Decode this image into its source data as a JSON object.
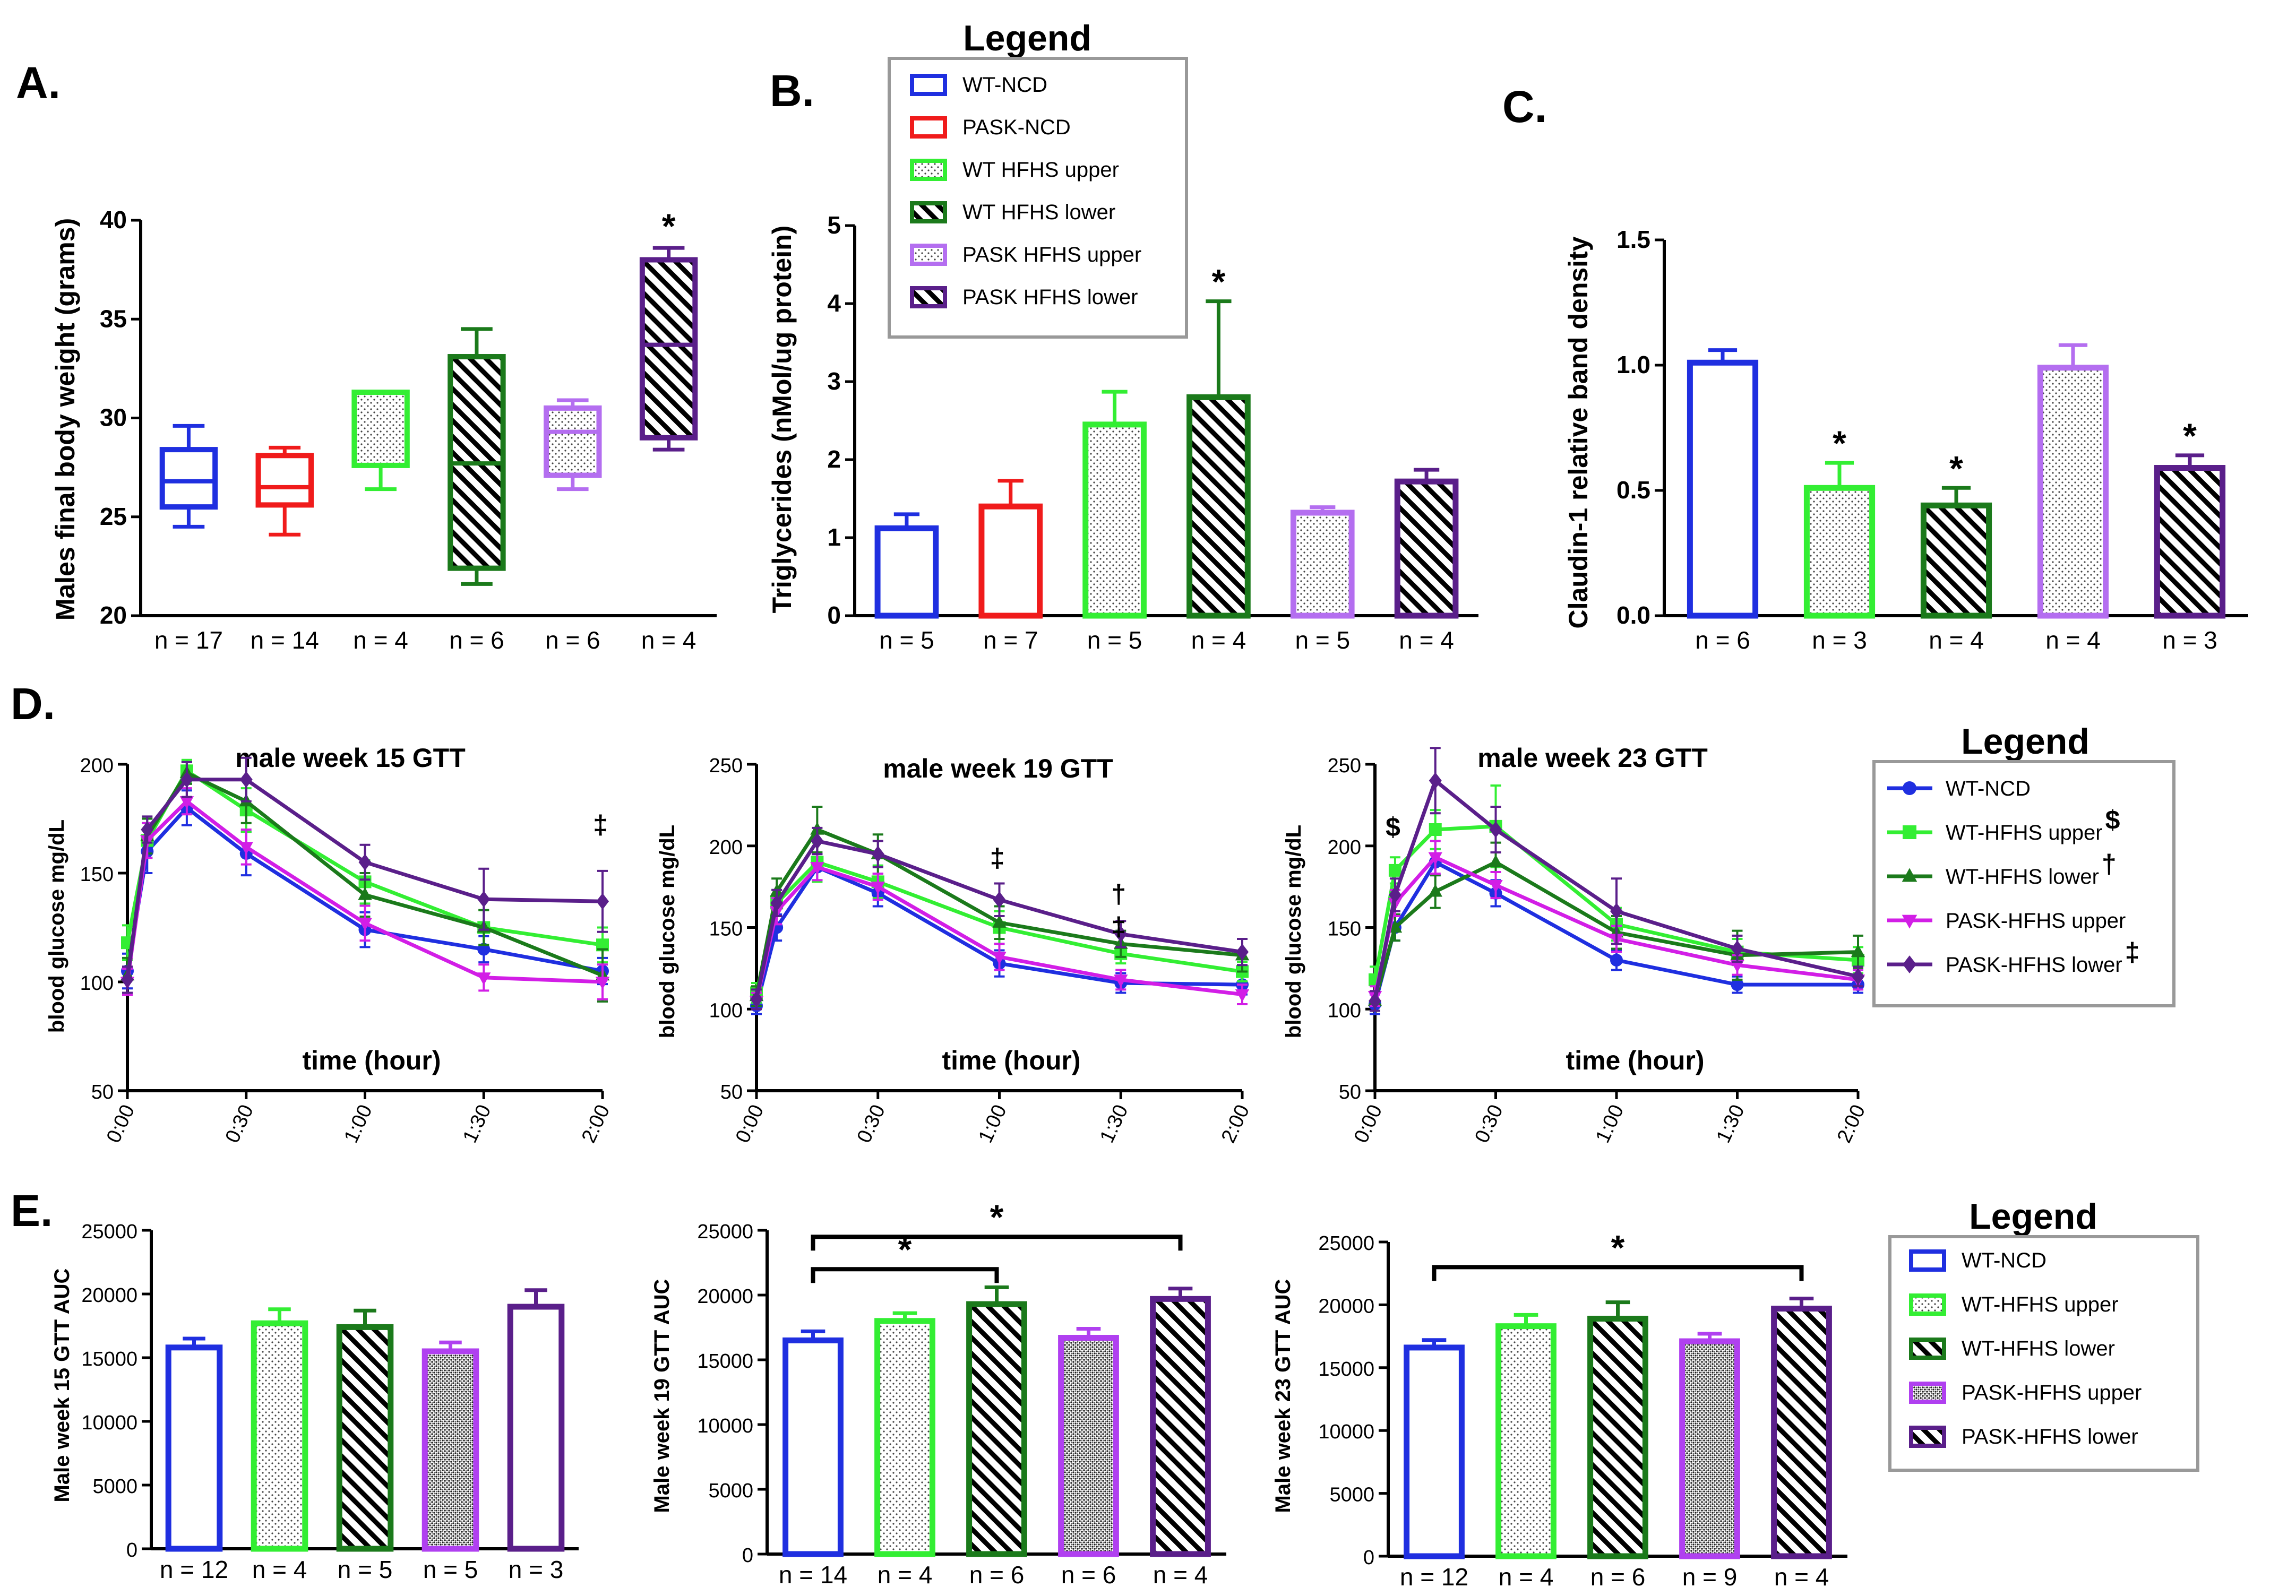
{
  "colors": {
    "wt_ncd": "#1f2fe0",
    "pask_ncd": "#f01b1b",
    "wt_hfhs_upper": "#33ee33",
    "wt_hfhs_lower": "#1b7a1b",
    "pask_hfhs_upper": "#b46ef0",
    "pask_hfhs_lower": "#5a1f8a",
    "pask_hfhs_upper_line": "#d21ee6",
    "pask_hfhs_upper_e": "#b040f0"
  },
  "chart_data": [
    {
      "id": "A",
      "type": "box",
      "panel_label": "A.",
      "ylabel": "Males final body weight (grams)",
      "ylim": [
        20,
        40
      ],
      "yticks": [
        "20",
        "25",
        "30",
        "35",
        "40"
      ],
      "boxes": [
        {
          "group": "WT-NCD",
          "n_label": "n = 17",
          "min": 24.5,
          "q1": 25.5,
          "median": 26.8,
          "q3": 28.4,
          "max": 29.6,
          "fill": "none",
          "star": ""
        },
        {
          "group": "PASK-NCD",
          "n_label": "n = 14",
          "min": 24.1,
          "q1": 25.6,
          "median": 26.5,
          "q3": 28.1,
          "max": 28.5,
          "fill": "none",
          "star": ""
        },
        {
          "group": "WT HFHS upper",
          "n_label": "n = 4",
          "min": 26.4,
          "q1": 27.6,
          "median": 31.3,
          "q3": 31.3,
          "max": 31.3,
          "fill": "dots",
          "star": ""
        },
        {
          "group": "WT HFHS lower",
          "n_label": "n = 6",
          "min": 21.6,
          "q1": 22.4,
          "median": 27.7,
          "q3": 33.1,
          "max": 34.5,
          "fill": "hatch",
          "star": ""
        },
        {
          "group": "PASK HFHS upper",
          "n_label": "n = 6",
          "min": 26.4,
          "q1": 27.1,
          "median": 29.3,
          "q3": 30.5,
          "max": 30.9,
          "fill": "dots",
          "star": ""
        },
        {
          "group": "PASK HFHS lower",
          "n_label": "n = 4",
          "min": 28.4,
          "q1": 29.0,
          "median": 33.7,
          "q3": 38.0,
          "max": 38.6,
          "fill": "hatch",
          "star": "*"
        }
      ]
    },
    {
      "id": "B",
      "type": "bar",
      "panel_label": "B.",
      "ylabel": "Triglycerides (nMol/ug protein)",
      "ylim": [
        0,
        5
      ],
      "yticks": [
        "0",
        "1",
        "2",
        "3",
        "4",
        "5"
      ],
      "bars": [
        {
          "group": "WT-NCD",
          "n_label": "n = 5",
          "value": 1.12,
          "err": 0.18,
          "fill": "none",
          "star": ""
        },
        {
          "group": "PASK-NCD",
          "n_label": "n = 7",
          "value": 1.4,
          "err": 0.33,
          "fill": "none",
          "star": ""
        },
        {
          "group": "WT HFHS upper",
          "n_label": "n = 5",
          "value": 2.45,
          "err": 0.42,
          "fill": "dots",
          "star": ""
        },
        {
          "group": "WT HFHS lower",
          "n_label": "n = 4",
          "value": 2.8,
          "err": 1.23,
          "fill": "hatch",
          "star": "*"
        },
        {
          "group": "PASK HFHS upper",
          "n_label": "n = 5",
          "value": 1.32,
          "err": 0.07,
          "fill": "dots",
          "star": ""
        },
        {
          "group": "PASK HFHS lower",
          "n_label": "n = 4",
          "value": 1.72,
          "err": 0.15,
          "fill": "hatch",
          "star": ""
        }
      ]
    },
    {
      "id": "C",
      "type": "bar",
      "panel_label": "C.",
      "ylabel": "Claudin-1 relative band density",
      "ylim": [
        0,
        1.5
      ],
      "yticks": [
        "0.0",
        "0.5",
        "1.0",
        "1.5"
      ],
      "bars": [
        {
          "group": "WT-NCD",
          "n_label": "n = 6",
          "value": 1.01,
          "err": 0.05,
          "fill": "none",
          "star": ""
        },
        {
          "group": "WT HFHS upper",
          "n_label": "n = 3",
          "value": 0.51,
          "err": 0.1,
          "fill": "dots",
          "star": "*"
        },
        {
          "group": "WT HFHS lower",
          "n_label": "n = 4",
          "value": 0.44,
          "err": 0.07,
          "fill": "hatch",
          "star": "*"
        },
        {
          "group": "PASK HFHS upper",
          "n_label": "n = 4",
          "value": 0.99,
          "err": 0.09,
          "fill": "dots",
          "star": ""
        },
        {
          "group": "PASK HFHS lower",
          "n_label": "n = 3",
          "value": 0.59,
          "err": 0.05,
          "fill": "hatch",
          "star": "*"
        }
      ]
    },
    {
      "id": "D1",
      "type": "line",
      "panel_label": "D.",
      "title": "male week 15 GTT",
      "xlabel": "time (hour)",
      "ylabel": "blood glucose mg/dL",
      "ylim": [
        50,
        200
      ],
      "yticks": [
        "50",
        "100",
        "150",
        "200"
      ],
      "x": [
        0,
        5,
        15,
        30,
        60,
        90,
        120
      ],
      "xticks": [
        "0:00",
        "0:30",
        "1:00",
        "1:30",
        "2:00"
      ],
      "series": [
        {
          "name": "WT-NCD",
          "values": [
            105,
            160,
            180,
            159,
            124,
            115,
            105
          ],
          "err": [
            8,
            10,
            8,
            10,
            8,
            6,
            6
          ]
        },
        {
          "name": "WT-HFHS upper",
          "values": [
            118,
            165,
            197,
            179,
            146,
            125,
            117
          ],
          "err": [
            8,
            8,
            5,
            10,
            10,
            8,
            8
          ]
        },
        {
          "name": "WT-HFHS lower",
          "values": [
            103,
            167,
            196,
            183,
            140,
            125,
            103
          ],
          "err": [
            8,
            8,
            5,
            10,
            10,
            8,
            12
          ]
        },
        {
          "name": "PASK-HFHS upper",
          "values": [
            100,
            165,
            183,
            162,
            127,
            102,
            100
          ],
          "err": [
            6,
            8,
            6,
            8,
            8,
            6,
            8
          ]
        },
        {
          "name": "PASK-HFHS lower",
          "values": [
            101,
            170,
            193,
            193,
            155,
            138,
            137
          ],
          "err": [
            6,
            6,
            8,
            10,
            8,
            14,
            14
          ]
        }
      ],
      "markers": [
        {
          "x": 120,
          "y": 168,
          "text": "‡"
        }
      ]
    },
    {
      "id": "D2",
      "type": "line",
      "title": "male week 19 GTT",
      "xlabel": "time (hour)",
      "ylabel": "blood glucose mg/dL",
      "ylim": [
        50,
        250
      ],
      "yticks": [
        "50",
        "100",
        "150",
        "200",
        "250"
      ],
      "x": [
        0,
        5,
        15,
        30,
        60,
        90,
        120
      ],
      "xticks": [
        "0:00",
        "0:30",
        "1:00",
        "1:30",
        "2:00"
      ],
      "series": [
        {
          "name": "WT-NCD",
          "values": [
            102,
            150,
            187,
            171,
            128,
            116,
            115
          ],
          "err": [
            5,
            8,
            8,
            8,
            8,
            6,
            6
          ]
        },
        {
          "name": "WT-HFHS upper",
          "values": [
            110,
            165,
            190,
            178,
            150,
            134,
            123
          ],
          "err": [
            6,
            8,
            12,
            10,
            10,
            6,
            6
          ]
        },
        {
          "name": "WT-HFHS lower",
          "values": [
            108,
            172,
            210,
            195,
            153,
            140,
            133
          ],
          "err": [
            6,
            8,
            14,
            12,
            10,
            8,
            10
          ]
        },
        {
          "name": "PASK-HFHS upper",
          "values": [
            105,
            160,
            187,
            175,
            132,
            118,
            109
          ],
          "err": [
            5,
            8,
            8,
            8,
            8,
            6,
            6
          ]
        },
        {
          "name": "PASK-HFHS lower",
          "values": [
            106,
            165,
            203,
            195,
            167,
            146,
            135
          ],
          "err": [
            6,
            8,
            8,
            8,
            10,
            8,
            8
          ]
        }
      ],
      "markers": [
        {
          "x": 60,
          "y": 187,
          "text": "‡"
        },
        {
          "x": 90,
          "y": 165,
          "text": "†"
        },
        {
          "x": 90,
          "y": 145,
          "text": "‡"
        }
      ]
    },
    {
      "id": "D3",
      "type": "line",
      "title": "male week 23 GTT",
      "xlabel": "time (hour)",
      "ylabel": "blood glucose mg/dL",
      "ylim": [
        50,
        250
      ],
      "yticks": [
        "50",
        "100",
        "150",
        "200",
        "250"
      ],
      "x": [
        0,
        5,
        15,
        30,
        60,
        90,
        120
      ],
      "xticks": [
        "0:00",
        "0:30",
        "1:00",
        "1:30",
        "2:00"
      ],
      "series": [
        {
          "name": "WT-NCD",
          "values": [
            103,
            150,
            190,
            171,
            130,
            115,
            115
          ],
          "err": [
            6,
            8,
            8,
            8,
            6,
            5,
            5
          ]
        },
        {
          "name": "WT-HFHS upper",
          "values": [
            118,
            185,
            210,
            212,
            152,
            135,
            130
          ],
          "err": [
            8,
            8,
            12,
            25,
            10,
            8,
            8
          ]
        },
        {
          "name": "WT-HFHS lower",
          "values": [
            105,
            150,
            172,
            190,
            147,
            133,
            135
          ],
          "err": [
            6,
            8,
            10,
            12,
            10,
            15,
            10
          ]
        },
        {
          "name": "PASK-HFHS upper",
          "values": [
            108,
            165,
            193,
            176,
            143,
            127,
            118
          ],
          "err": [
            6,
            8,
            10,
            8,
            8,
            6,
            6
          ]
        },
        {
          "name": "PASK-HFHS lower",
          "values": [
            105,
            170,
            240,
            210,
            160,
            137,
            120
          ],
          "err": [
            6,
            10,
            20,
            14,
            20,
            8,
            6
          ]
        }
      ],
      "markers": [
        {
          "x": 5,
          "y": 206,
          "text": "$"
        }
      ]
    },
    {
      "id": "E1",
      "type": "bar",
      "panel_label": "E.",
      "ylabel": "Male week 15 GTT AUC",
      "ylim": [
        0,
        25000
      ],
      "yticks": [
        "0",
        "5000",
        "10000",
        "15000",
        "20000",
        "25000"
      ],
      "bars": [
        {
          "group": "WT-NCD",
          "n_label": "n = 12",
          "value": 15800,
          "err": 700,
          "fill": "none"
        },
        {
          "group": "WT-HFHS upper",
          "n_label": "n = 4",
          "value": 17700,
          "err": 1100,
          "fill": "dots"
        },
        {
          "group": "WT-HFHS lower",
          "n_label": "n = 5",
          "value": 17400,
          "err": 1300,
          "fill": "hatch"
        },
        {
          "group": "PASK-HFHS upper",
          "n_label": "n = 5",
          "value": 15500,
          "err": 700,
          "fill": "dense"
        },
        {
          "group": "PASK-HFHS lower",
          "n_label": "n = 3",
          "value": 19000,
          "err": 1300,
          "fill": "none"
        }
      ],
      "brackets": []
    },
    {
      "id": "E2",
      "type": "bar",
      "ylabel": "Male week 19 GTT AUC",
      "ylim": [
        0,
        25000
      ],
      "yticks": [
        "0",
        "5000",
        "10000",
        "15000",
        "20000",
        "25000"
      ],
      "bars": [
        {
          "group": "WT-NCD",
          "n_label": "n = 14",
          "value": 16500,
          "err": 700,
          "fill": "none"
        },
        {
          "group": "WT-HFHS upper",
          "n_label": "n = 4",
          "value": 18000,
          "err": 600,
          "fill": "dots"
        },
        {
          "group": "WT-HFHS lower",
          "n_label": "n = 6",
          "value": 19300,
          "err": 1300,
          "fill": "hatch"
        },
        {
          "group": "PASK-HFHS upper",
          "n_label": "n = 6",
          "value": 16700,
          "err": 700,
          "fill": "dense"
        },
        {
          "group": "PASK-HFHS lower",
          "n_label": "n = 4",
          "value": 19700,
          "err": 800,
          "fill": "hatch"
        }
      ],
      "brackets": [
        {
          "from": 0,
          "to": 2,
          "level": 22000,
          "text": "*"
        },
        {
          "from": 0,
          "to": 4,
          "level": 24500,
          "text": "*"
        }
      ]
    },
    {
      "id": "E3",
      "type": "bar",
      "ylabel": "Male week 23 GTT AUC",
      "ylim": [
        0,
        25000
      ],
      "yticks": [
        "0",
        "5000",
        "10000",
        "15000",
        "20000",
        "25000"
      ],
      "bars": [
        {
          "group": "WT-NCD",
          "n_label": "n = 12",
          "value": 16600,
          "err": 600,
          "fill": "none"
        },
        {
          "group": "WT-HFHS upper",
          "n_label": "n = 4",
          "value": 18300,
          "err": 900,
          "fill": "dots"
        },
        {
          "group": "WT-HFHS lower",
          "n_label": "n = 6",
          "value": 18900,
          "err": 1300,
          "fill": "hatch"
        },
        {
          "group": "PASK-HFHS upper",
          "n_label": "n = 9",
          "value": 17100,
          "err": 600,
          "fill": "dense"
        },
        {
          "group": "PASK-HFHS lower",
          "n_label": "n = 4",
          "value": 19700,
          "err": 800,
          "fill": "hatch"
        }
      ],
      "brackets": [
        {
          "from": 0,
          "to": 4,
          "level": 23000,
          "text": "*"
        }
      ]
    }
  ],
  "legends": [
    {
      "title": "Legend",
      "items": [
        {
          "label": "WT-NCD",
          "color": "#1f2fe0",
          "fill": "none"
        },
        {
          "label": "PASK-NCD",
          "color": "#f01b1b",
          "fill": "none"
        },
        {
          "label": "WT HFHS upper",
          "color": "#33ee33",
          "fill": "dots"
        },
        {
          "label": "WT HFHS lower",
          "color": "#1b7a1b",
          "fill": "hatch"
        },
        {
          "label": "PASK HFHS upper",
          "color": "#b46ef0",
          "fill": "dots"
        },
        {
          "label": "PASK HFHS lower",
          "color": "#5a1f8a",
          "fill": "hatch"
        }
      ]
    },
    {
      "title": "Legend",
      "items": [
        {
          "label": "WT-NCD",
          "color": "#1f2fe0",
          "marker": "circle",
          "sup": ""
        },
        {
          "label": "WT-HFHS upper",
          "color": "#33ee33",
          "marker": "square",
          "sup": "$"
        },
        {
          "label": "WT-HFHS lower",
          "color": "#1b7a1b",
          "marker": "triangle",
          "sup": "†"
        },
        {
          "label": "PASK-HFHS upper",
          "color": "#d21ee6",
          "marker": "tri-down",
          "sup": ""
        },
        {
          "label": "PASK-HFHS lower",
          "color": "#5a1f8a",
          "marker": "diamond",
          "sup": "‡"
        }
      ]
    },
    {
      "title": "Legend",
      "items": [
        {
          "label": "WT-NCD",
          "color": "#1f2fe0",
          "fill": "none"
        },
        {
          "label": "WT-HFHS upper",
          "color": "#33ee33",
          "fill": "dots"
        },
        {
          "label": "WT-HFHS lower",
          "color": "#1b7a1b",
          "fill": "hatch"
        },
        {
          "label": "PASK-HFHS upper",
          "color": "#b040f0",
          "fill": "dense"
        },
        {
          "label": "PASK-HFHS lower",
          "color": "#5a1f8a",
          "fill": "hatch"
        }
      ]
    }
  ]
}
